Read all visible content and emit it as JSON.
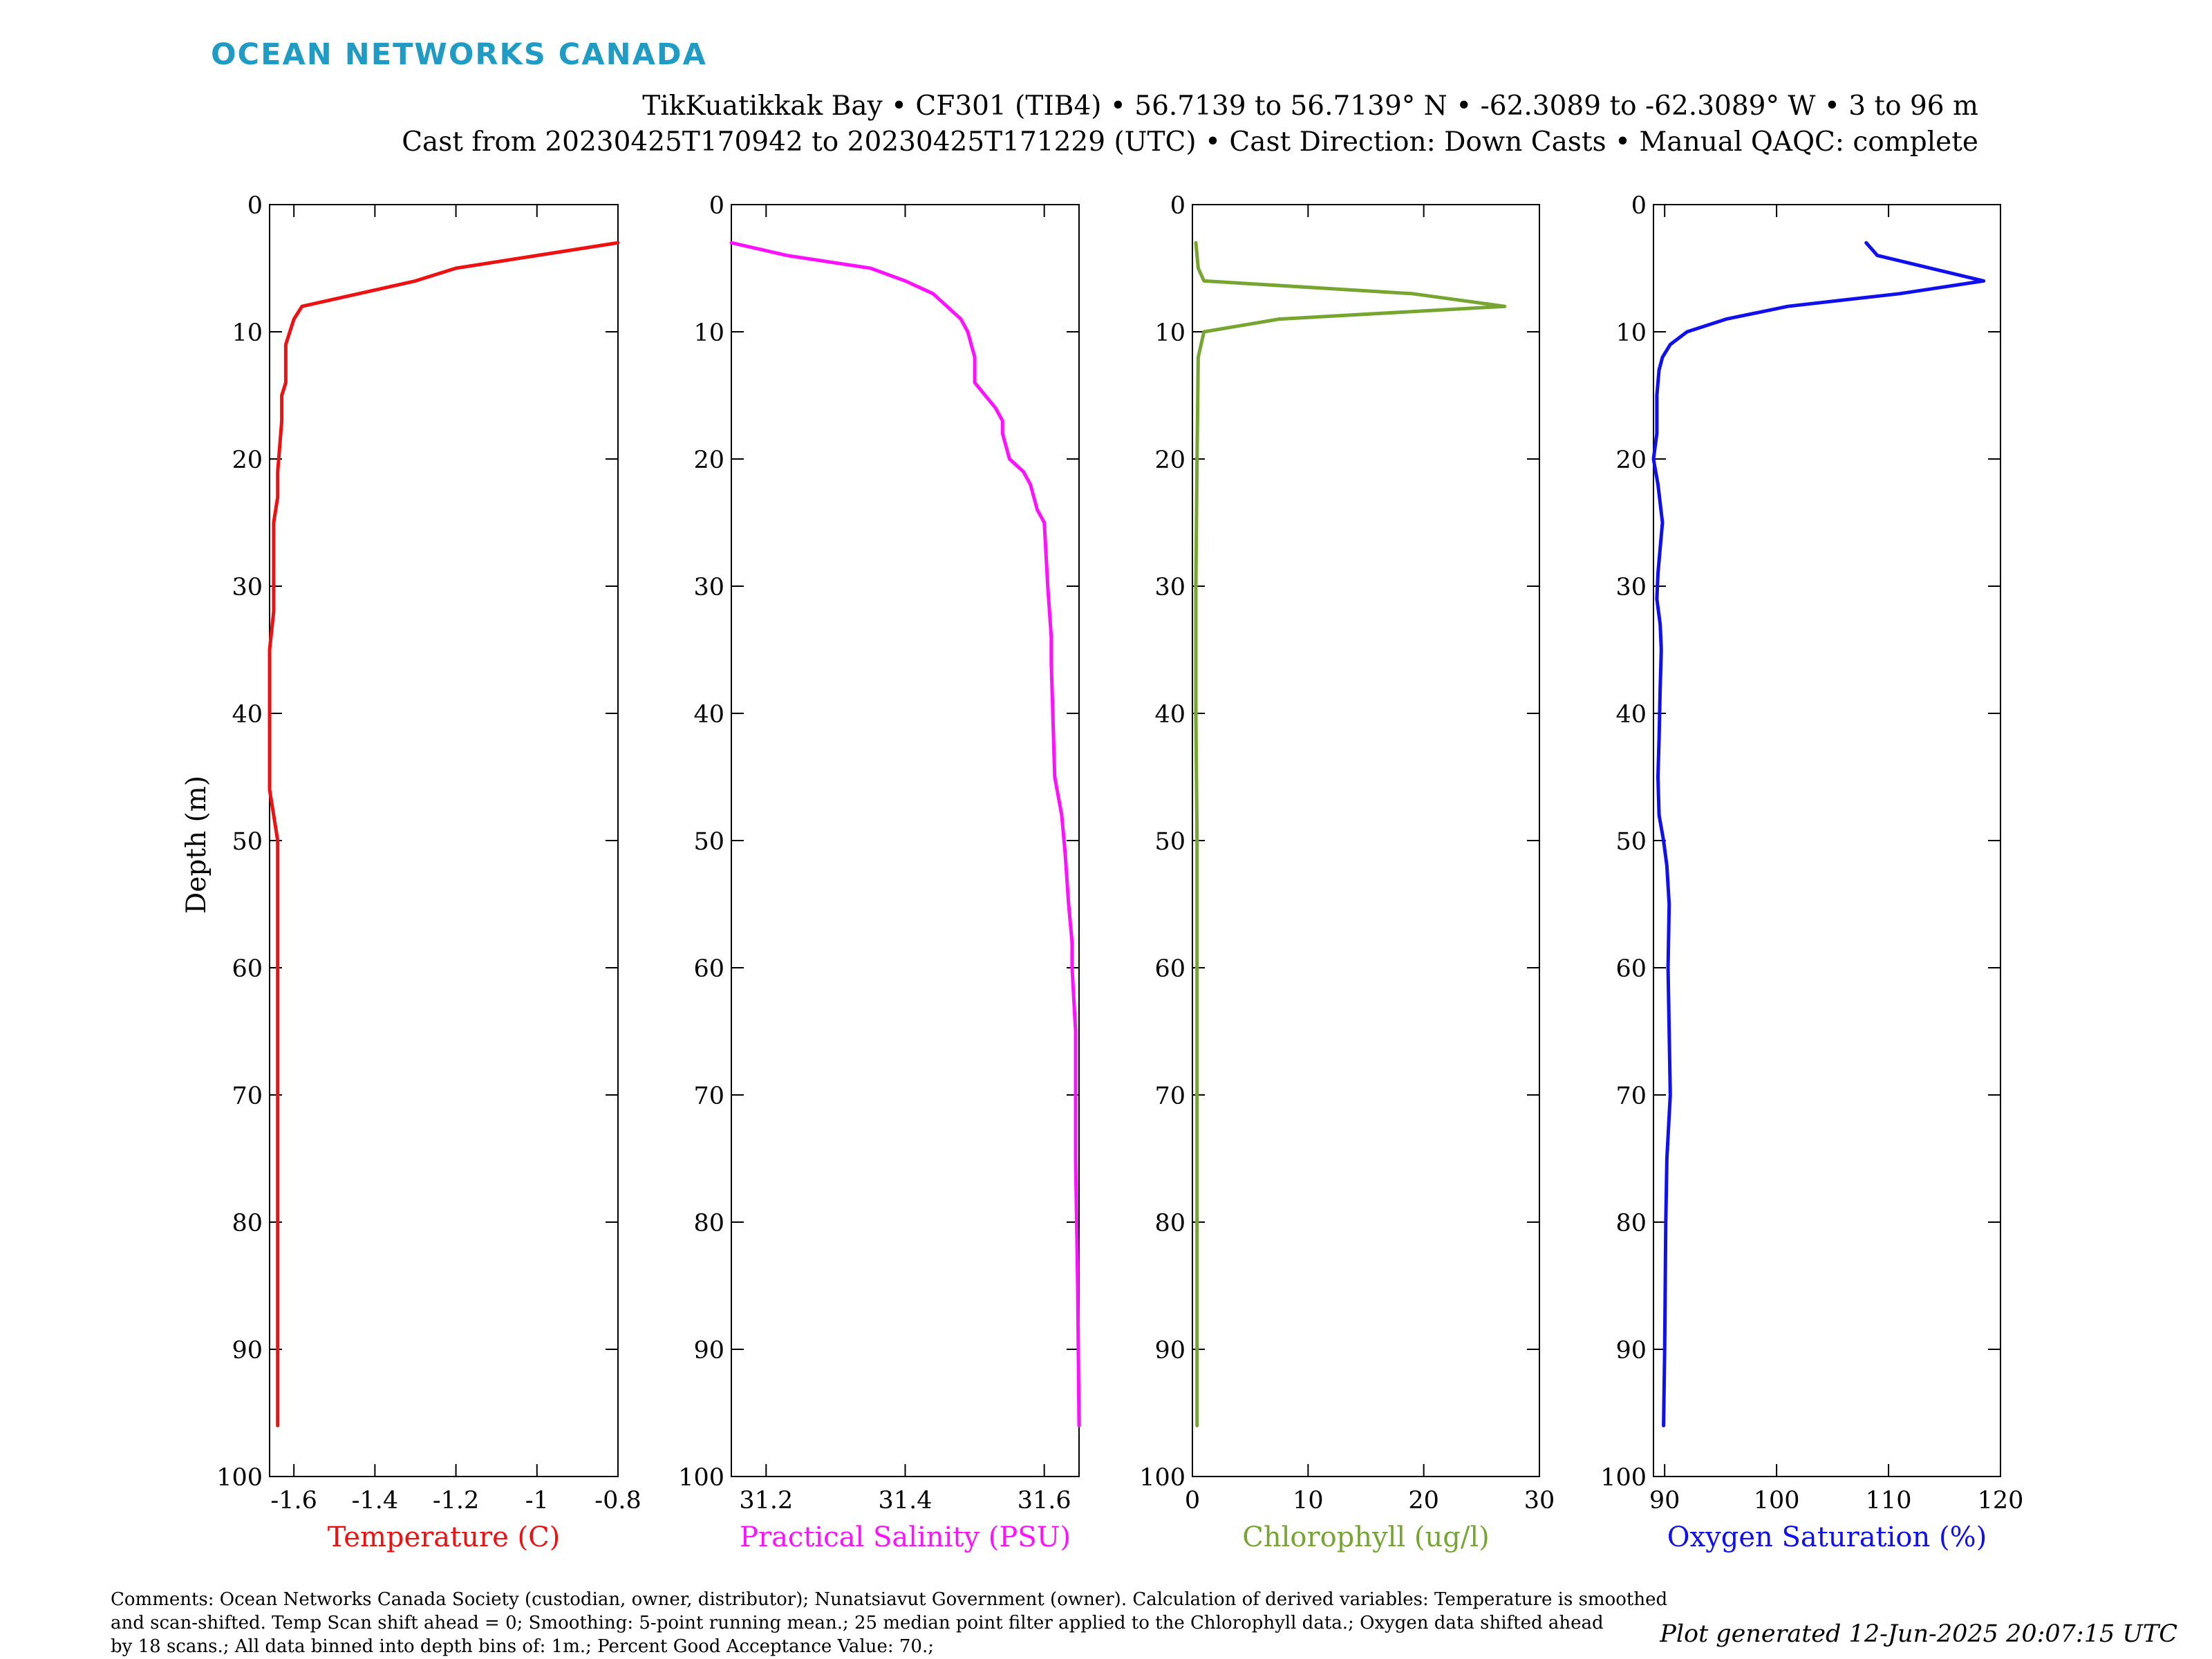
{
  "header": {
    "brand": "OCEAN NETWORKS CANADA",
    "brand_color": "#1f9bc4",
    "title_line1": "TikKuatikkak Bay • CF301 (TIB4) • 56.7139 to 56.7139° N • -62.3089 to -62.3089° W • 3 to 96 m",
    "title_line2": "Cast from 20230425T170942 to 20230425T171229 (UTC) • Cast Direction: Down Casts • Manual QAQC: complete"
  },
  "footer": {
    "comments_line1": "Comments: Ocean Networks Canada Society (custodian, owner, distributor); Nunatsiavut Government (owner). Calculation of derived variables: Temperature is smoothed",
    "comments_line2": "and scan-shifted. Temp Scan shift ahead = 0; Smoothing: 5-point running mean.; 25 median point filter applied to the Chlorophyll data.; Oxygen data shifted ahead",
    "comments_line3": "by 18 scans.; All data binned into depth bins of: 1m.; Percent Good Acceptance Value: 70.;",
    "generated": "Plot generated 12-Jun-2025 20:07:15 UTC"
  },
  "chart_data": [
    {
      "type": "line",
      "xlabel": "Temperature (C)",
      "ylabel": "Depth (m)",
      "color": "#ee1111",
      "xlim": [
        -1.66,
        -0.8
      ],
      "ylim": [
        0,
        100
      ],
      "y_reversed": true,
      "xticks": [
        -1.6,
        -1.4,
        -1.2,
        -1,
        -0.8
      ],
      "xtick_labels": [
        "-1.6",
        "-1.4",
        "-1.2",
        "-1",
        "-0.8"
      ],
      "yticks": [
        0,
        10,
        20,
        30,
        40,
        50,
        60,
        70,
        80,
        90,
        100
      ],
      "series": [
        {
          "x": [
            -0.8,
            -1.0,
            -1.2,
            -1.3,
            -1.58,
            -1.6,
            -1.62,
            -1.62,
            -1.63,
            -1.63,
            -1.64,
            -1.64,
            -1.65,
            -1.65,
            -1.65,
            -1.66,
            -1.66,
            -1.66,
            -1.66,
            -1.65,
            -1.64,
            -1.64,
            -1.64,
            -1.64,
            -1.64,
            -1.64,
            -1.64,
            -1.64,
            -1.64,
            -1.64,
            -1.64
          ],
          "y": [
            3,
            4,
            5,
            6,
            8,
            9,
            11,
            14,
            15,
            17,
            21,
            23,
            25,
            28,
            32,
            35,
            40,
            44,
            46,
            48,
            50,
            52,
            55,
            60,
            65,
            70,
            75,
            80,
            85,
            90,
            96
          ]
        }
      ]
    },
    {
      "type": "line",
      "xlabel": "Practical Salinity (PSU)",
      "color": "#ff11ff",
      "xlim": [
        31.15,
        31.65
      ],
      "ylim": [
        0,
        100
      ],
      "y_reversed": true,
      "xticks": [
        31.2,
        31.4,
        31.6
      ],
      "xtick_labels": [
        "31.2",
        "31.4",
        "31.6"
      ],
      "yticks": [
        0,
        10,
        20,
        30,
        40,
        50,
        60,
        70,
        80,
        90,
        100
      ],
      "series": [
        {
          "x": [
            31.15,
            31.23,
            31.35,
            31.4,
            31.44,
            31.46,
            31.48,
            31.49,
            31.5,
            31.5,
            31.53,
            31.54,
            31.54,
            31.55,
            31.57,
            31.58,
            31.59,
            31.6,
            31.605,
            31.61,
            31.61,
            31.615,
            31.625,
            31.63,
            31.635,
            31.64,
            31.64,
            31.645,
            31.645,
            31.645,
            31.648,
            31.65
          ],
          "y": [
            3,
            4,
            5,
            6,
            7,
            8,
            9,
            10,
            12,
            14,
            16,
            17,
            18,
            20,
            21,
            22,
            24,
            25,
            30,
            34,
            36,
            45,
            48,
            51,
            55,
            58,
            60,
            65,
            70,
            75,
            85,
            96
          ]
        }
      ]
    },
    {
      "type": "line",
      "xlabel": "Chlorophyll (ug/l)",
      "color": "#76a531",
      "xlim": [
        0,
        30
      ],
      "ylim": [
        0,
        100
      ],
      "y_reversed": true,
      "xticks": [
        0,
        10,
        20,
        30
      ],
      "xtick_labels": [
        "0",
        "10",
        "20",
        "30"
      ],
      "yticks": [
        0,
        10,
        20,
        30,
        40,
        50,
        60,
        70,
        80,
        90,
        100
      ],
      "series": [
        {
          "x": [
            0.3,
            0.5,
            1.0,
            19.0,
            27.0,
            7.5,
            1.0,
            0.5,
            0.4,
            0.3,
            0.3,
            0.4,
            0.4,
            0.4,
            0.4,
            0.4,
            0.4
          ],
          "y": [
            3,
            5,
            6,
            7,
            8,
            9,
            10,
            12,
            20,
            30,
            40,
            50,
            60,
            70,
            80,
            90,
            96
          ]
        }
      ]
    },
    {
      "type": "line",
      "xlabel": "Oxygen Saturation (%)",
      "color": "#1010ee",
      "xlim": [
        89,
        120
      ],
      "ylim": [
        0,
        100
      ],
      "y_reversed": true,
      "xticks": [
        90,
        100,
        110,
        120
      ],
      "xtick_labels": [
        "90",
        "100",
        "110",
        "120"
      ],
      "yticks": [
        0,
        10,
        20,
        30,
        40,
        50,
        60,
        70,
        80,
        90,
        100
      ],
      "series": [
        {
          "x": [
            108.0,
            109.0,
            118.5,
            111.0,
            101.0,
            95.5,
            92.0,
            90.5,
            89.8,
            89.5,
            89.3,
            89.3,
            89.0,
            89.4,
            89.8,
            89.6,
            89.4,
            89.3,
            89.6,
            89.7,
            89.6,
            89.5,
            89.4,
            89.5,
            89.9,
            90.2,
            90.4,
            90.3,
            90.4,
            90.5,
            90.2,
            90.1,
            90.0,
            89.9
          ],
          "y": [
            3,
            4,
            6,
            7,
            8,
            9,
            10,
            11,
            12,
            13,
            15,
            18,
            20,
            22,
            25,
            27,
            29,
            31,
            33,
            35,
            38,
            42,
            45,
            48,
            50,
            52,
            55,
            60,
            65,
            70,
            75,
            80,
            90,
            96
          ]
        }
      ]
    }
  ]
}
